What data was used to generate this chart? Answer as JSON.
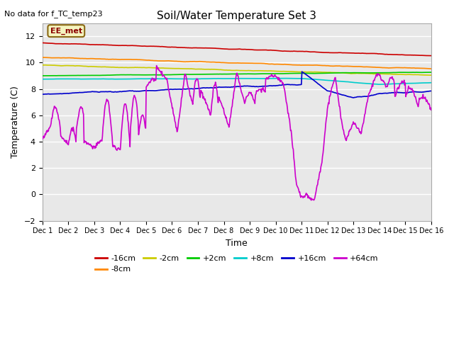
{
  "title": "Soil/Water Temperature Set 3",
  "subtitle": "No data for f_TC_temp23",
  "xlabel": "Time",
  "ylabel": "Temperature (C)",
  "ylim": [
    -2,
    13
  ],
  "yticks": [
    -2,
    0,
    2,
    4,
    6,
    8,
    10,
    12
  ],
  "x_labels": [
    "Dec 1",
    "Dec 2",
    "Dec 3",
    "Dec 4",
    "Dec 5",
    "Dec 6",
    "Dec 7",
    "Dec 8",
    "Dec 9",
    "Dec 10",
    "Dec 11",
    "Dec 12",
    "Dec 13",
    "Dec 14",
    "Dec 15",
    "Dec 16"
  ],
  "legend_label": "EE_met",
  "series_colors": {
    "-16cm": "#cc0000",
    "-8cm": "#ff8800",
    "-2cm": "#cccc00",
    "+2cm": "#00cc00",
    "+8cm": "#00cccc",
    "+16cm": "#0000cc",
    "+64cm": "#cc00cc"
  },
  "background_color": "#ffffff",
  "plot_bg_color": "#e8e8e8",
  "grid_color": "#ffffff",
  "n_points": 720
}
